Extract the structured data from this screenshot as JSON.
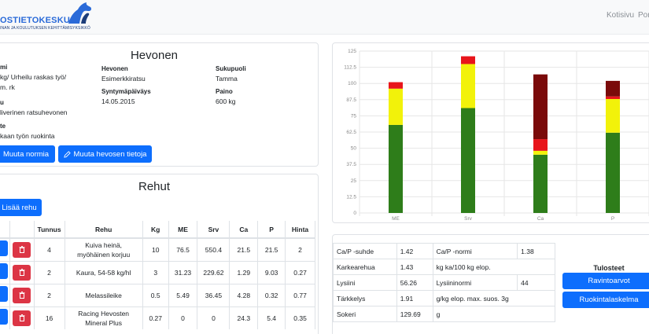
{
  "header": {
    "logo_text": "OSTIETOKESKUS",
    "logo_sub": "INAN JA KOULUTUKSEN KEHITTÄMISYKSIKKÖ",
    "nav": [
      "Kotisivu",
      "Por"
    ]
  },
  "hevonen": {
    "title": "Hevonen",
    "norm_label": "mi",
    "norm_value_1": "kg/ Urheilu raskas työ/",
    "norm_value_2": "m. rk",
    "breed_label": "u",
    "breed_value": "liverinen ratsuhevonen",
    "purpose_label": "te",
    "purpose_value": "kaan työn ruokinta",
    "horse_label": "Hevonen",
    "horse_value": "Esimerkkiratsu",
    "birth_label": "Syntymäpäiväys",
    "birth_value": "14.05.2015",
    "sex_label": "Sukupuoli",
    "sex_value": "Tamma",
    "weight_label": "Paino",
    "weight_value": "600 kg",
    "btn_norm": "Muuta normia",
    "btn_horse": "Muuta hevosen tietoja"
  },
  "rehut": {
    "title": "Rehut",
    "add_button": "Lisää rehu",
    "columns": [
      "Tunnus",
      "Rehu",
      "Kg",
      "ME",
      "Srv",
      "Ca",
      "P",
      "Hinta"
    ],
    "rows": [
      {
        "tunnus": "4",
        "rehu_1": "Kuiva heinä,",
        "rehu_2": "myöhäinen korjuu",
        "kg": "10",
        "me": "76.5",
        "srv": "550.4",
        "ca": "21.5",
        "p": "21.5",
        "hinta": "2"
      },
      {
        "tunnus": "2",
        "rehu_1": "Kaura, 54-58 kg/hl",
        "rehu_2": "",
        "kg": "3",
        "me": "31.23",
        "srv": "229.62",
        "ca": "1.29",
        "p": "9.03",
        "hinta": "0.27"
      },
      {
        "tunnus": "2",
        "rehu_1": "Melassileike",
        "rehu_2": "",
        "kg": "0.5",
        "me": "5.49",
        "srv": "36.45",
        "ca": "4.28",
        "p": "0.32",
        "hinta": "0.77"
      },
      {
        "tunnus": "16",
        "rehu_1": "Racing Hevosten",
        "rehu_2": "Mineral Plus",
        "kg": "0.27",
        "me": "0",
        "srv": "0",
        "ca": "24.3",
        "p": "5.4",
        "hinta": "0.35"
      }
    ]
  },
  "values_table": {
    "rows": [
      [
        "Ca/P -suhde",
        "1.42",
        "Ca/P -normi",
        "1.38"
      ],
      [
        "Karkearehua",
        "1.43",
        "kg ka/100 kg elop.",
        ""
      ],
      [
        "Lysiini",
        "56.26",
        "Lysiininormi",
        "44"
      ],
      [
        "Tärkkelys",
        "1.91",
        "g/kg elop. max. suos. 3g",
        ""
      ],
      [
        "Sokeri",
        "129.69",
        "g",
        ""
      ]
    ]
  },
  "tulosteet": {
    "title": "Tulosteet",
    "btn_ravinto": "Ravintoarvot",
    "btn_ruokinta": "Ruokintalaskelma"
  },
  "chart_data": {
    "type": "bar",
    "stacked": true,
    "categories": [
      "ME",
      "Srv",
      "Ca",
      "P"
    ],
    "y_ticks": [
      "0",
      "12.5",
      "25",
      "37.5",
      "50",
      "62.5",
      "75",
      "87.5",
      "100",
      "112.5",
      "125"
    ],
    "ylim": [
      0,
      125
    ],
    "series": [
      {
        "color": "#2e7d1a",
        "values": [
          68,
          81,
          45,
          62
        ]
      },
      {
        "color": "#f2f20a",
        "values": [
          28,
          34,
          3,
          26
        ]
      },
      {
        "color": "#e8151b",
        "values": [
          5,
          6,
          9,
          2
        ]
      },
      {
        "color": "#7a0a0a",
        "values": [
          0,
          0,
          50,
          12
        ]
      }
    ]
  }
}
